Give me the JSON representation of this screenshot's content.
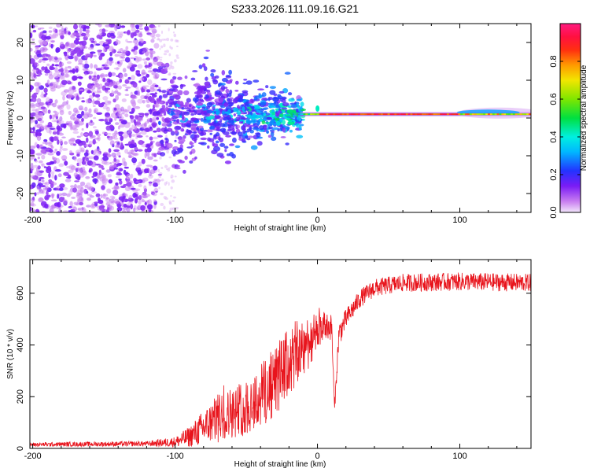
{
  "figure": {
    "title": "S233.2026.111.09.16.G21"
  },
  "chart_data": [
    {
      "type": "heatmap",
      "name": "spectrogram",
      "xlabel": "Height of straight line (km)",
      "ylabel": "Frequency (Hz)",
      "xlim": [
        -202,
        150
      ],
      "ylim": [
        -25,
        25
      ],
      "xticks": [
        -200,
        -100,
        0,
        100
      ],
      "xtick_labels": [
        "-200",
        "-100",
        "0",
        "100"
      ],
      "yticks": [
        -20,
        -10,
        0,
        10,
        20
      ],
      "ytick_labels": [
        "-20",
        "-10",
        "0",
        "10",
        "20"
      ],
      "colorbar": {
        "label": "Normalized spectral amplitude",
        "range": [
          0,
          1
        ],
        "ticks": [
          0.0,
          0.2,
          0.4,
          0.6,
          0.8
        ],
        "tick_labels": [
          "0.0",
          "0.2",
          "0.4",
          "0.6",
          "0.8"
        ],
        "colormap": "rainbow (white-violet-blue-cyan-green-yellow-orange-red-magenta)"
      },
      "features": {
        "noise_region_km": [
          -202,
          -112
        ],
        "transition_region_km": [
          -112,
          -10
        ],
        "signal_line_freq_hz": 1.0,
        "signal_line_start_km": -12
      },
      "colors": {
        "noise": "#7b2ff7",
        "signal_peak": "#ff1a1a"
      }
    },
    {
      "type": "line",
      "name": "snr",
      "xlabel": "Height of straight line (km)",
      "ylabel": "SNR (10 * v/v)",
      "xlim": [
        -202,
        150
      ],
      "ylim": [
        0,
        730
      ],
      "xticks": [
        -200,
        -100,
        0,
        100
      ],
      "xtick_labels": [
        "-200",
        "-100",
        "0",
        "100"
      ],
      "yticks": [
        0,
        200,
        400,
        600
      ],
      "ytick_labels": [
        "0",
        "200",
        "400",
        "600"
      ],
      "series": [
        {
          "name": "SNR",
          "color": "#e8141c",
          "trend_x": [
            -202,
            -120,
            -100,
            -90,
            -80,
            -70,
            -60,
            -50,
            -40,
            -30,
            -20,
            -12,
            -5,
            0,
            5,
            10,
            12,
            15,
            20,
            30,
            40,
            60,
            100,
            150
          ],
          "trend_y": [
            15,
            18,
            25,
            45,
            80,
            120,
            140,
            160,
            200,
            260,
            330,
            380,
            420,
            450,
            470,
            470,
            150,
            440,
            500,
            580,
            620,
            640,
            645,
            640
          ],
          "noise_amplitude": [
            8,
            10,
            20,
            40,
            70,
            90,
            100,
            110,
            130,
            140,
            140,
            130,
            100,
            70,
            60,
            50,
            20,
            50,
            40,
            35,
            35,
            35,
            35,
            35
          ]
        }
      ]
    }
  ]
}
